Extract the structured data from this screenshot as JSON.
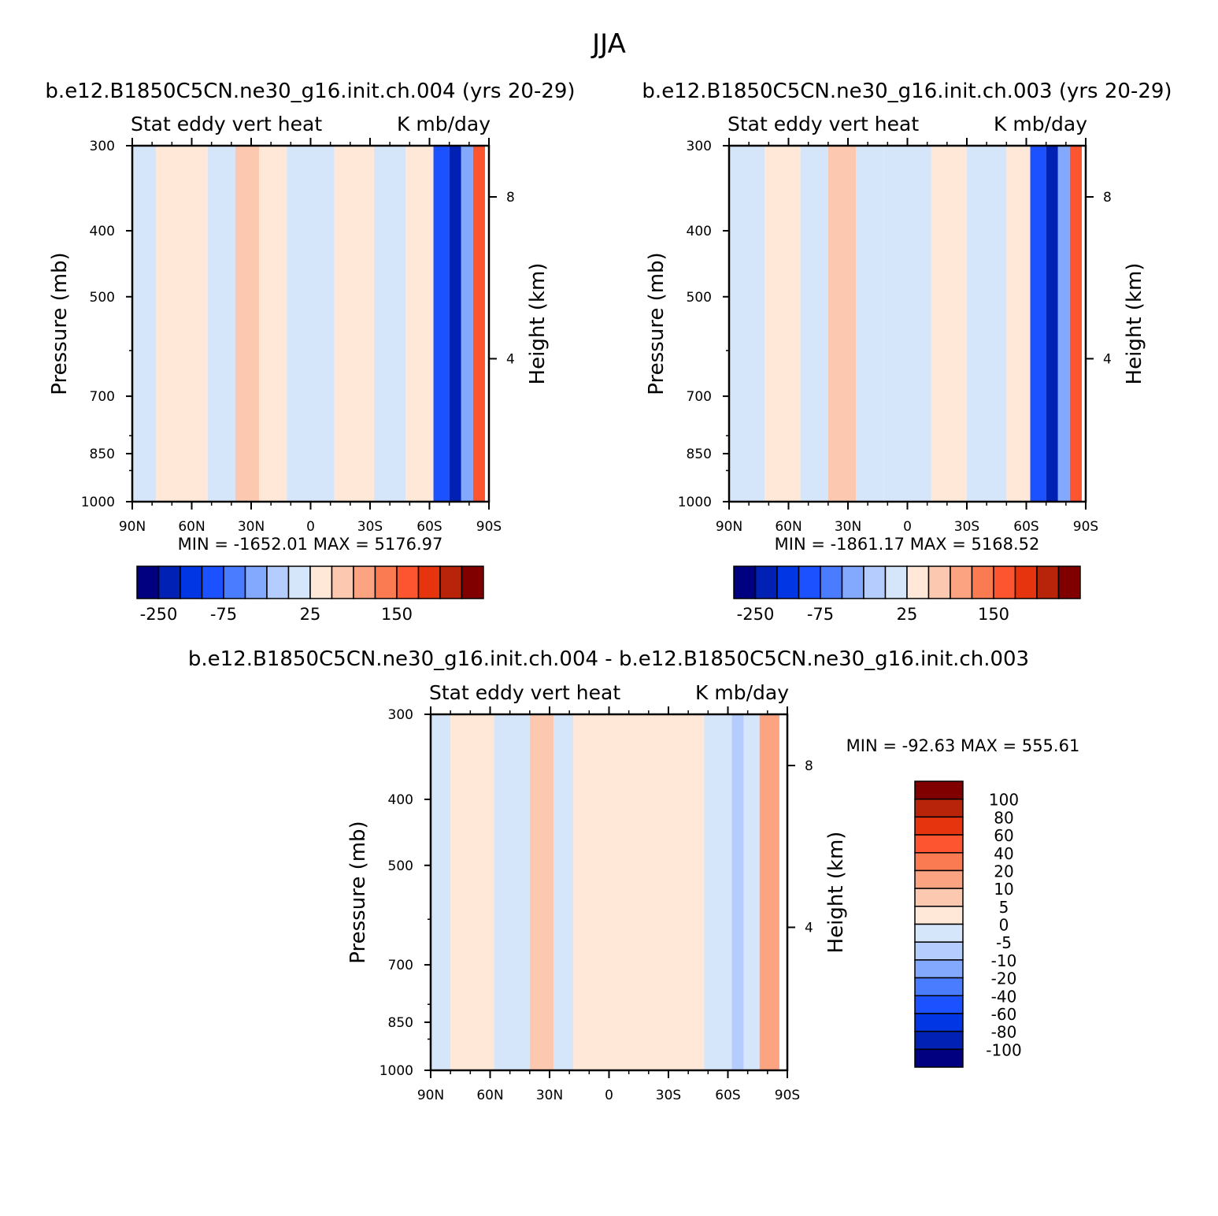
{
  "figure": {
    "season": "JJA"
  },
  "colors": {
    "panel_palette": [
      "#000080",
      "#0021b4",
      "#0036e4",
      "#1c51ff",
      "#4a7cff",
      "#83a9ff",
      "#b5ccff",
      "#d5e6fb",
      "#ffe8d8",
      "#fcc8b0",
      "#fca382",
      "#fa7a52",
      "#fc5530",
      "#e5340e",
      "#b8240a",
      "#800000"
    ],
    "diff_palette": [
      "#000080",
      "#0021b4",
      "#0036e4",
      "#1c51ff",
      "#4a7cff",
      "#83a9ff",
      "#b5ccff",
      "#d5e6fb",
      "#ffe8d8",
      "#fcc8b0",
      "#fca382",
      "#fa7a52",
      "#fc5530",
      "#e5340e",
      "#b8240a",
      "#800000"
    ]
  },
  "panels": [
    {
      "case_title": "b.e12.B1850C5CN.ne30_g16.init.ch.004 (yrs 20-29)",
      "variable": "Stat eddy vert heat",
      "units": "K mb/day",
      "min_label": "MIN = -1652.01",
      "max_label": "MAX = 5176.97",
      "ylabel": "Pressure (mb)",
      "right_label": "Height (km)",
      "pressure_ticks": [
        "300",
        "400",
        "500",
        "700",
        "850",
        "1000"
      ],
      "height_ticks": [
        "8",
        "4"
      ],
      "lat_ticks": [
        "90N",
        "60N",
        "30N",
        "0",
        "30S",
        "60S",
        "90S"
      ],
      "colorbar_labels": [
        "-250",
        "-75",
        "25",
        "150"
      ]
    },
    {
      "case_title": "b.e12.B1850C5CN.ne30_g16.init.ch.003 (yrs 20-29)",
      "variable": "Stat eddy vert heat",
      "units": "K mb/day",
      "min_label": "MIN = -1861.17",
      "max_label": "MAX = 5168.52",
      "ylabel": "Pressure (mb)",
      "right_label": "Height (km)",
      "pressure_ticks": [
        "300",
        "400",
        "500",
        "700",
        "850",
        "1000"
      ],
      "height_ticks": [
        "8",
        "4"
      ],
      "lat_ticks": [
        "90N",
        "60N",
        "30N",
        "0",
        "30S",
        "60S",
        "90S"
      ],
      "colorbar_labels": [
        "-250",
        "-75",
        "25",
        "150"
      ]
    },
    {
      "case_title": "b.e12.B1850C5CN.ne30_g16.init.ch.004 - b.e12.B1850C5CN.ne30_g16.init.ch.003",
      "variable": "Stat eddy vert heat",
      "units": "K mb/day",
      "min_label": "MIN = -92.63",
      "max_label": "MAX = 555.61",
      "ylabel": "Pressure (mb)",
      "right_label": "Height (km)",
      "pressure_ticks": [
        "300",
        "400",
        "500",
        "700",
        "850",
        "1000"
      ],
      "height_ticks": [
        "8",
        "4"
      ],
      "lat_ticks": [
        "90N",
        "60N",
        "30N",
        "0",
        "30S",
        "60S",
        "90S"
      ],
      "colorbar_labels": [
        "100",
        "80",
        "60",
        "40",
        "20",
        "10",
        "5",
        "0",
        "-5",
        "-10",
        "-20",
        "-40",
        "-60",
        "-80",
        "-100"
      ]
    }
  ],
  "chart_data": [
    {
      "type": "heatmap",
      "title": "Stat eddy vert heat",
      "subtitle": "b.e12.B1850C5CN.ne30_g16.init.ch.004 (yrs 20-29)",
      "xlabel": "",
      "ylabel": "Pressure (mb)",
      "y2label": "Height (km)",
      "x_ticks": [
        90,
        60,
        30,
        0,
        -30,
        -60,
        -90
      ],
      "y_ticks": [
        300,
        400,
        500,
        700,
        850,
        1000
      ],
      "xlim": [
        90,
        -90
      ],
      "ylim": [
        1000,
        300
      ],
      "y_scale": "log",
      "levels": [
        -250,
        -200,
        -150,
        -100,
        -75,
        -50,
        -25,
        0,
        25,
        50,
        75,
        100,
        150,
        200,
        250
      ],
      "min": -1652.01,
      "max": 5176.97,
      "bands": [
        {
          "lat": [
            90,
            78
          ],
          "value": -10
        },
        {
          "lat": [
            78,
            52
          ],
          "value": 10
        },
        {
          "lat": [
            52,
            38
          ],
          "value": -10
        },
        {
          "lat": [
            38,
            26
          ],
          "value": 30
        },
        {
          "lat": [
            26,
            12
          ],
          "value": 10
        },
        {
          "lat": [
            12,
            -12
          ],
          "value": -10
        },
        {
          "lat": [
            -12,
            -32
          ],
          "value": 10
        },
        {
          "lat": [
            -32,
            -48
          ],
          "value": -10
        },
        {
          "lat": [
            -48,
            -62
          ],
          "value": 10
        },
        {
          "lat": [
            -62,
            -70
          ],
          "value": -150
        },
        {
          "lat": [
            -70,
            -76
          ],
          "value": -250
        },
        {
          "lat": [
            -76,
            -82
          ],
          "value": -60
        },
        {
          "lat": [
            -82,
            -88
          ],
          "value": 120
        }
      ]
    },
    {
      "type": "heatmap",
      "title": "Stat eddy vert heat",
      "subtitle": "b.e12.B1850C5CN.ne30_g16.init.ch.003 (yrs 20-29)",
      "xlabel": "",
      "ylabel": "Pressure (mb)",
      "y2label": "Height (km)",
      "x_ticks": [
        90,
        60,
        30,
        0,
        -30,
        -60,
        -90
      ],
      "y_ticks": [
        300,
        400,
        500,
        700,
        850,
        1000
      ],
      "xlim": [
        90,
        -90
      ],
      "ylim": [
        1000,
        300
      ],
      "y_scale": "log",
      "levels": [
        -250,
        -200,
        -150,
        -100,
        -75,
        -50,
        -25,
        0,
        25,
        50,
        75,
        100,
        150,
        200,
        250
      ],
      "min": -1861.17,
      "max": 5168.52,
      "bands": [
        {
          "lat": [
            90,
            72
          ],
          "value": -10
        },
        {
          "lat": [
            72,
            54
          ],
          "value": 10
        },
        {
          "lat": [
            54,
            40
          ],
          "value": -10
        },
        {
          "lat": [
            40,
            26
          ],
          "value": 30
        },
        {
          "lat": [
            26,
            12
          ],
          "value": -10
        },
        {
          "lat": [
            12,
            -12
          ],
          "value": -10
        },
        {
          "lat": [
            -12,
            -30
          ],
          "value": 10
        },
        {
          "lat": [
            -30,
            -50
          ],
          "value": -10
        },
        {
          "lat": [
            -50,
            -62
          ],
          "value": 10
        },
        {
          "lat": [
            -62,
            -70
          ],
          "value": -150
        },
        {
          "lat": [
            -70,
            -76
          ],
          "value": -250
        },
        {
          "lat": [
            -76,
            -82
          ],
          "value": -60
        },
        {
          "lat": [
            -82,
            -88
          ],
          "value": 120
        }
      ]
    },
    {
      "type": "heatmap",
      "title": "Stat eddy vert heat",
      "subtitle": "b.e12.B1850C5CN.ne30_g16.init.ch.004 - b.e12.B1850C5CN.ne30_g16.init.ch.003",
      "xlabel": "",
      "ylabel": "Pressure (mb)",
      "y2label": "Height (km)",
      "x_ticks": [
        90,
        60,
        30,
        0,
        -30,
        -60,
        -90
      ],
      "y_ticks": [
        300,
        400,
        500,
        700,
        850,
        1000
      ],
      "xlim": [
        90,
        -90
      ],
      "ylim": [
        1000,
        300
      ],
      "y_scale": "log",
      "levels": [
        -100,
        -80,
        -60,
        -40,
        -20,
        -10,
        -5,
        0,
        5,
        10,
        20,
        40,
        60,
        80,
        100
      ],
      "min": -92.63,
      "max": 555.61,
      "bands": [
        {
          "lat": [
            90,
            80
          ],
          "value": -2
        },
        {
          "lat": [
            80,
            58
          ],
          "value": 2
        },
        {
          "lat": [
            58,
            40
          ],
          "value": -2
        },
        {
          "lat": [
            40,
            28
          ],
          "value": 7
        },
        {
          "lat": [
            28,
            18
          ],
          "value": -2
        },
        {
          "lat": [
            18,
            -48
          ],
          "value": 2
        },
        {
          "lat": [
            -48,
            -62
          ],
          "value": -2
        },
        {
          "lat": [
            -62,
            -68
          ],
          "value": -8
        },
        {
          "lat": [
            -68,
            -76
          ],
          "value": -3
        },
        {
          "lat": [
            -76,
            -86
          ],
          "value": 15
        }
      ]
    }
  ]
}
